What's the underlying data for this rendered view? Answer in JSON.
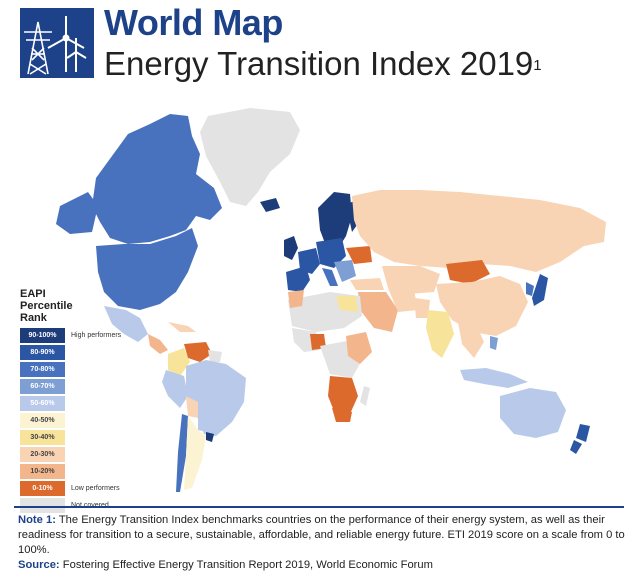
{
  "header": {
    "title": "World Map",
    "subtitle": "Energy Transition Index 2019",
    "subtitle_superscript": "1",
    "logo_icon": "wind-turbine-and-pylon-icon"
  },
  "legend": {
    "title": "EAPI Percentile Rank",
    "items": [
      {
        "range": "90-100%",
        "color": "#1d3c7a",
        "note": "High performers"
      },
      {
        "range": "80-90%",
        "color": "#2b56a3",
        "note": ""
      },
      {
        "range": "70-80%",
        "color": "#4872be",
        "note": ""
      },
      {
        "range": "60-70%",
        "color": "#7e9fd4",
        "note": ""
      },
      {
        "range": "50-60%",
        "color": "#b8c9e9",
        "note": ""
      },
      {
        "range": "40-50%",
        "color": "#fbf3d2",
        "note": ""
      },
      {
        "range": "30-40%",
        "color": "#f7e39a",
        "note": ""
      },
      {
        "range": "20-30%",
        "color": "#f8d4b4",
        "note": ""
      },
      {
        "range": "10-20%",
        "color": "#f3b58c",
        "note": ""
      },
      {
        "range": "0-10%",
        "color": "#dd6a2d",
        "note": "Low performers"
      },
      {
        "range": "",
        "color": "#e3e3e3",
        "note": "Not covered"
      }
    ]
  },
  "notes": {
    "note_label": "Note 1:",
    "note_text": " The Energy Transition Index benchmarks countries on the performance of their energy system, as well as their readiness for transition to a secure, sustainable, affordable, and reliable energy future. ETI 2019 score on a scale from 0 to 100%.",
    "source_label": "Source:",
    "source_text": " Fostering Effective Energy Transition Report 2019, World Economic Forum"
  },
  "colors": {
    "brand": "#1d4289",
    "not_covered": "#e3e3e3"
  }
}
